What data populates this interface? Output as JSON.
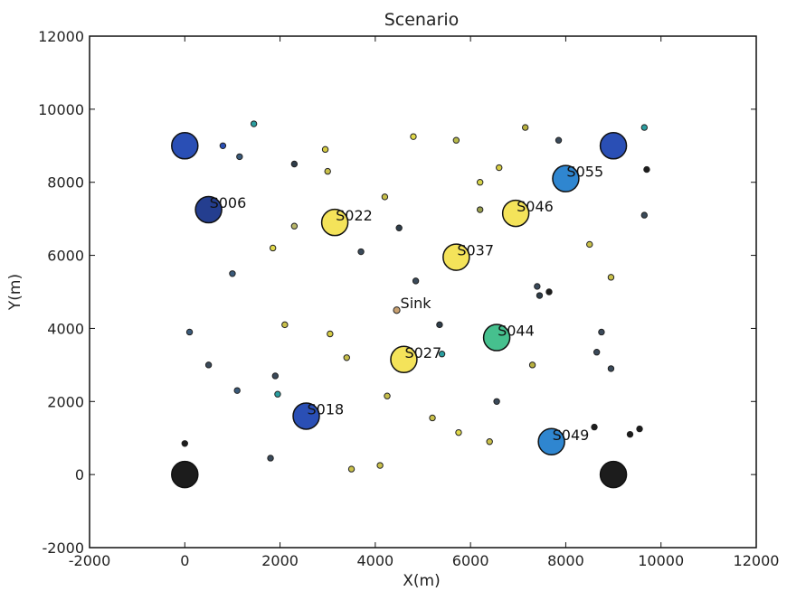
{
  "chart_data": {
    "type": "scatter",
    "title": "Scenario",
    "xlabel": "X(m)",
    "ylabel": "Y(m)",
    "xlim": [
      -2000,
      12000
    ],
    "ylim": [
      -2000,
      12000
    ],
    "xticks": [
      "-2000",
      "0",
      "2000",
      "4000",
      "6000",
      "8000",
      "10000",
      "12000"
    ],
    "yticks": [
      "-2000",
      "0",
      "2000",
      "4000",
      "6000",
      "8000",
      "10000",
      "12000"
    ],
    "grid": false,
    "large_nodes": [
      {
        "x": 0,
        "y": 9000,
        "color": "#2a4fb5",
        "label": ""
      },
      {
        "x": 9000,
        "y": 9000,
        "color": "#2a4fb5",
        "label": ""
      },
      {
        "x": 500,
        "y": 7250,
        "color": "#243e8f",
        "label": "S006"
      },
      {
        "x": 8000,
        "y": 8100,
        "color": "#2f86d0",
        "label": "S055"
      },
      {
        "x": 3150,
        "y": 6900,
        "color": "#f4e35a",
        "label": "S022"
      },
      {
        "x": 6950,
        "y": 7150,
        "color": "#f4e35a",
        "label": "S046"
      },
      {
        "x": 5700,
        "y": 5950,
        "color": "#f4e35a",
        "label": "S037"
      },
      {
        "x": 6550,
        "y": 3750,
        "color": "#46c08e",
        "label": "S044"
      },
      {
        "x": 4600,
        "y": 3150,
        "color": "#f4e35a",
        "label": "S027"
      },
      {
        "x": 2550,
        "y": 1600,
        "color": "#2a4fb5",
        "label": "S018"
      },
      {
        "x": 7700,
        "y": 900,
        "color": "#2f86d0",
        "label": "S049"
      },
      {
        "x": 0,
        "y": 0,
        "color": "#1c1c1c",
        "label": ""
      },
      {
        "x": 9000,
        "y": 0,
        "color": "#1c1c1c",
        "label": ""
      }
    ],
    "sink": {
      "x": 4450,
      "y": 4500,
      "label": "Sink"
    },
    "small_nodes": [
      [
        1450,
        9600,
        "#2a9ea0"
      ],
      [
        800,
        9000,
        "#2a4fb5"
      ],
      [
        1150,
        8700,
        "#3a5a7a"
      ],
      [
        2300,
        8500,
        "#2e3d4a"
      ],
      [
        2950,
        8900,
        "#d6cc44"
      ],
      [
        3000,
        8300,
        "#c9c04a"
      ],
      [
        4800,
        9250,
        "#e0d84a"
      ],
      [
        5700,
        9150,
        "#b8ba4a"
      ],
      [
        7150,
        9500,
        "#b8b040"
      ],
      [
        7850,
        9150,
        "#3a4a5a"
      ],
      [
        9650,
        9500,
        "#2a9ea0"
      ],
      [
        9700,
        8350,
        "#1c1c1c"
      ],
      [
        6600,
        8400,
        "#d8ce44"
      ],
      [
        6200,
        8000,
        "#d6d44a"
      ],
      [
        4200,
        7600,
        "#c6be4a"
      ],
      [
        2300,
        6800,
        "#b8b66a"
      ],
      [
        4500,
        6750,
        "#2e3d4a"
      ],
      [
        6200,
        7250,
        "#9aa050"
      ],
      [
        9650,
        7100,
        "#3a4a5a"
      ],
      [
        1850,
        6200,
        "#e0d84a"
      ],
      [
        3700,
        6100,
        "#3a4a5a"
      ],
      [
        8500,
        6300,
        "#c9c04a"
      ],
      [
        1000,
        5500,
        "#3a5a7a"
      ],
      [
        4850,
        5300,
        "#3a4a5a"
      ],
      [
        8950,
        5400,
        "#c9c04a"
      ],
      [
        7400,
        5150,
        "#3a4a5a"
      ],
      [
        7450,
        4900,
        "#2e3d4a"
      ],
      [
        7650,
        5000,
        "#1c1c1c"
      ],
      [
        2100,
        4100,
        "#c9c04a"
      ],
      [
        3050,
        3850,
        "#d6cc44"
      ],
      [
        5350,
        4100,
        "#2e3d4a"
      ],
      [
        8750,
        3900,
        "#3a4a5a"
      ],
      [
        100,
        3900,
        "#3a5a7a"
      ],
      [
        3400,
        3200,
        "#c6be4a"
      ],
      [
        5400,
        3300,
        "#2a9ea0"
      ],
      [
        8650,
        3350,
        "#3a4a5a"
      ],
      [
        500,
        3000,
        "#3a4a5a"
      ],
      [
        7300,
        3000,
        "#b8b040"
      ],
      [
        8950,
        2900,
        "#3a4a5a"
      ],
      [
        1900,
        2700,
        "#3a4a5a"
      ],
      [
        1100,
        2300,
        "#3a5a7a"
      ],
      [
        1950,
        2200,
        "#2a9ea0"
      ],
      [
        4250,
        2150,
        "#c6be4a"
      ],
      [
        6550,
        2000,
        "#3a4a5a"
      ],
      [
        5200,
        1550,
        "#c9c04a"
      ],
      [
        5750,
        1150,
        "#e0d84a"
      ],
      [
        6400,
        900,
        "#c9c04a"
      ],
      [
        8600,
        1300,
        "#1c1c1c"
      ],
      [
        9550,
        1250,
        "#1c1c1c"
      ],
      [
        9350,
        1100,
        "#1c1c1c"
      ],
      [
        0,
        850,
        "#1c1c1c"
      ],
      [
        1800,
        450,
        "#3a4a5a"
      ],
      [
        3500,
        150,
        "#c9c04a"
      ],
      [
        4100,
        250,
        "#c9c04a"
      ]
    ]
  }
}
